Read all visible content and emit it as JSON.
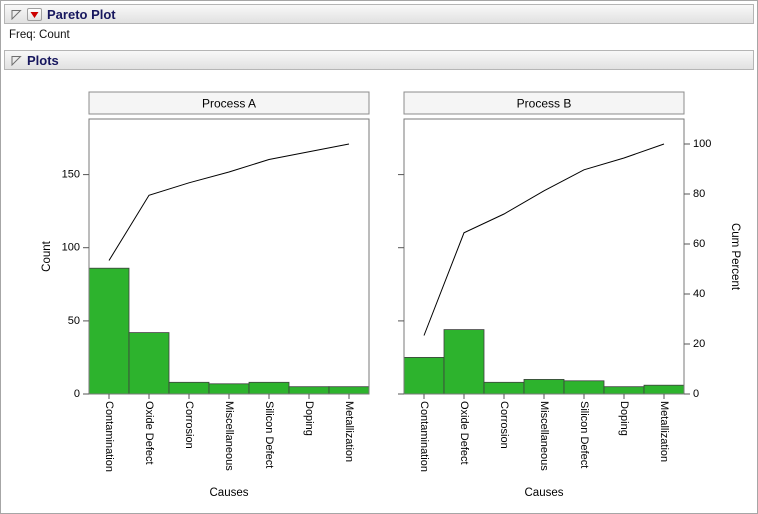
{
  "window": {
    "title_header": "Pareto Plot",
    "freq_label": "Freq: Count",
    "plots_header": "Plots"
  },
  "chart_data": {
    "type": "pareto",
    "categories": [
      "Contamination",
      "Oxide Defect",
      "Corrosion",
      "Miscellaneous",
      "Silicon Defect",
      "Doping",
      "Metallization"
    ],
    "panels": [
      {
        "title": "Process A",
        "counts": [
          86,
          42,
          8,
          7,
          8,
          5,
          5
        ],
        "cum_percent": [
          53.4,
          79.5,
          84.5,
          88.8,
          93.8,
          96.9,
          100
        ]
      },
      {
        "title": "Process B",
        "counts": [
          25,
          44,
          8,
          10,
          9,
          5,
          6
        ],
        "cum_percent": [
          23.4,
          64.5,
          72.0,
          81.3,
          89.7,
          94.4,
          100
        ]
      }
    ],
    "xlabel": "Causes",
    "ylabel_left": "Count",
    "ylabel_right": "Cum Percent",
    "left_axis_ticks": [
      0,
      50,
      100,
      150
    ],
    "right_axis_ticks": [
      0,
      20,
      40,
      60,
      80,
      100
    ],
    "count_axis_max": 188,
    "percent_axis_max": 110,
    "bar_color": "#2db32d",
    "bar_edge_color": "#3f3f3f",
    "line_color": "#000000",
    "frame_color": "#7a7a7a",
    "tick_color": "#555555",
    "panel_title_bg": "#f5f5f5",
    "panel_title_border": "#8c8c8c"
  }
}
